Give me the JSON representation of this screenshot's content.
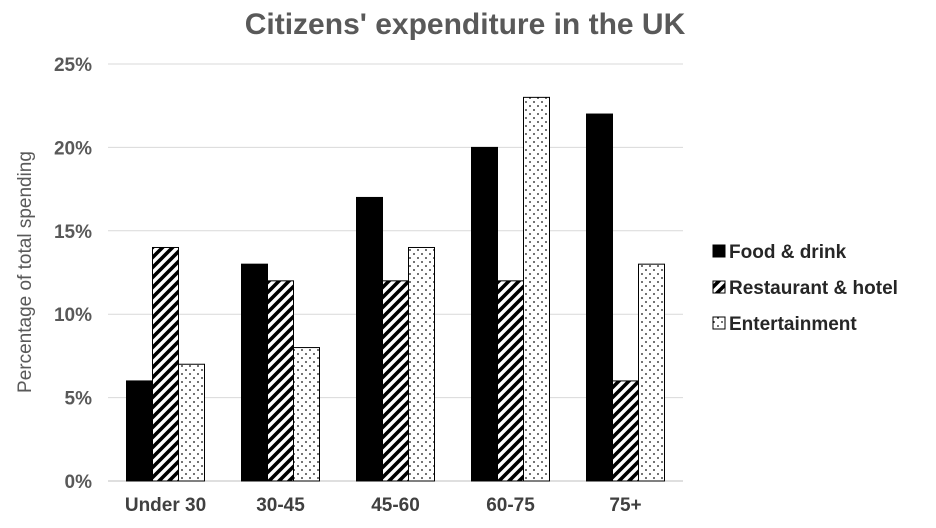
{
  "chart_data": {
    "type": "bar",
    "title": "Citizens' expenditure in the UK",
    "xlabel": "",
    "ylabel": "Percentage of total spending",
    "categories": [
      "Under 30",
      "30-45",
      "45-60",
      "60-75",
      "75+"
    ],
    "series": [
      {
        "name": "Food & drink",
        "values": [
          6,
          13,
          17,
          20,
          22
        ],
        "pattern": "solid"
      },
      {
        "name": "Restaurant & hotel",
        "values": [
          14,
          12,
          12,
          12,
          6
        ],
        "pattern": "diagonal-stripes"
      },
      {
        "name": "Entertainment",
        "values": [
          7,
          8,
          14,
          23,
          13
        ],
        "pattern": "dots"
      }
    ],
    "ylim": [
      0,
      25
    ],
    "yticks": [
      0,
      5,
      10,
      15,
      20,
      25
    ],
    "ytick_labels": [
      "0%",
      "5%",
      "10%",
      "15%",
      "20%",
      "25%"
    ],
    "grid": true,
    "legend_position": "right",
    "colors": {
      "bar": "#000000",
      "grid": "#d9d9d9",
      "text": "#595959"
    }
  }
}
